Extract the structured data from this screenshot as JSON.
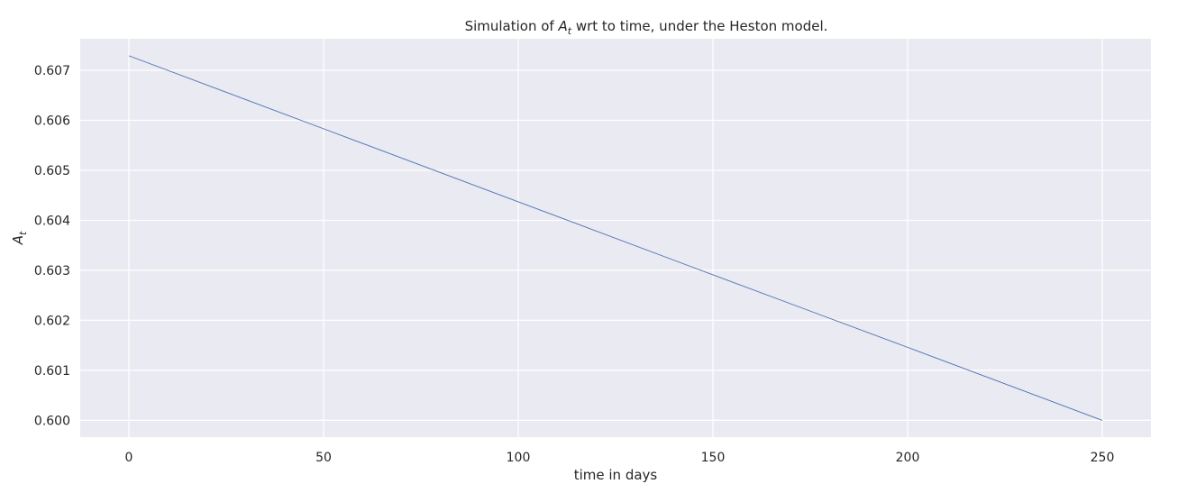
{
  "chart_data": {
    "type": "line",
    "title_parts": [
      "Simulation of ",
      "A",
      "t",
      " wrt to time, under the Heston model."
    ],
    "xlabel": "time in days",
    "ylabel_parts": [
      "A",
      "t"
    ],
    "xlim": [
      -12.5,
      262.5
    ],
    "ylim": [
      0.599665,
      0.60763
    ],
    "xticks": [
      0,
      50,
      100,
      150,
      200,
      250
    ],
    "xtick_labels": [
      "0",
      "50",
      "100",
      "150",
      "200",
      "250"
    ],
    "yticks": [
      0.6,
      0.601,
      0.602,
      0.603,
      0.604,
      0.605,
      0.606,
      0.607
    ],
    "ytick_labels": [
      "0.600",
      "0.601",
      "0.602",
      "0.603",
      "0.604",
      "0.605",
      "0.606",
      "0.607"
    ],
    "grid": true,
    "colors": {
      "background": "#EAEAF2",
      "grid": "#FFFFFF",
      "line": "#4C72B0",
      "text": "#262626"
    },
    "series": [
      {
        "x": [
          0,
          50,
          100,
          150,
          200,
          250
        ],
        "y": [
          0.60729,
          0.60583,
          0.60437,
          0.60291,
          0.60146,
          0.6
        ]
      }
    ]
  }
}
